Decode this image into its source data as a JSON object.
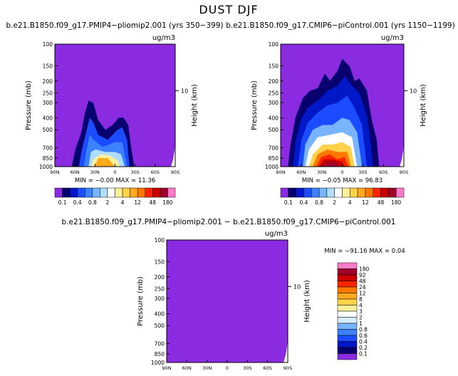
{
  "title": "DUST DJF",
  "colors": {
    "background": "#8a2be2",
    "palette": [
      "#8a2be2",
      "#08006e",
      "#0018c8",
      "#1c4cff",
      "#3c82ff",
      "#78b4ff",
      "#b0dcff",
      "#ffffff",
      "#fff09c",
      "#ffd24a",
      "#ffa91c",
      "#ff7800",
      "#ff2400",
      "#c80000",
      "#a0002a",
      "#ff7ac8"
    ]
  },
  "chart_data": [
    {
      "type": "contour",
      "id": "top-left",
      "title": "b.e21.B1850.f09_g17.PMIP4−pliomip2.001  (yrs 350−399)",
      "units": "ug/m3",
      "ylabel": "Pressure (mb)",
      "ylabel_right": "Height (km)",
      "x_ticks": [
        "90N",
        "60N",
        "30N",
        "0",
        "30S",
        "60S",
        "90S"
      ],
      "y_ticks": [
        "100",
        "150",
        "200",
        "250",
        "300",
        "400",
        "500",
        "700",
        "850",
        "1000"
      ],
      "right_ticks": [
        "10"
      ],
      "ylim": [
        1000,
        100
      ],
      "stats": "MIN =   −0.00   MAX =   11.36",
      "colorbar": {
        "orientation": "horizontal",
        "labels": [
          "0.1",
          "0.4",
          "0.8",
          "2",
          "4",
          "12",
          "48",
          "180"
        ]
      },
      "max_level_index": 12
    },
    {
      "type": "contour",
      "id": "top-right",
      "title": "b.e21.B1850.f09_g17.CMIP6−piControl.001  (yrs 1150−1199)",
      "units": "ug/m3",
      "ylabel": "Pressure (mb)",
      "ylabel_right": "Height (km)",
      "x_ticks": [
        "90N",
        "60N",
        "30N",
        "0",
        "30S",
        "60S",
        "90S"
      ],
      "y_ticks": [
        "100",
        "150",
        "200",
        "250",
        "300",
        "400",
        "500",
        "700",
        "850",
        "1000"
      ],
      "right_ticks": [
        "10"
      ],
      "ylim": [
        1000,
        100
      ],
      "stats": "MIN =   −0.05   MAX =   96.83",
      "colorbar": {
        "orientation": "horizontal",
        "labels": [
          "0.1",
          "0.4",
          "0.8",
          "2",
          "4",
          "12",
          "48",
          "180"
        ]
      },
      "max_level_index": 14
    },
    {
      "type": "contour",
      "id": "bottom",
      "title": "b.e21.B1850.f09_g17.PMIP4−pliomip2.001  −  b.e21.B1850.f09_g17.CMIP6−piControl.001",
      "units": "ug/m3",
      "ylabel": "Pressure (mb)",
      "ylabel_right": "Height (km)",
      "x_ticks": [
        "90N",
        "60N",
        "30N",
        "0",
        "30S",
        "60S",
        "90S"
      ],
      "y_ticks": [
        "100",
        "150",
        "200",
        "250",
        "300",
        "400",
        "500",
        "700",
        "850",
        "1000"
      ],
      "right_ticks": [
        "10"
      ],
      "ylim": [
        1000,
        100
      ],
      "stats": "MIN = −91.16   MAX =     0.04",
      "colorbar": {
        "orientation": "vertical",
        "labels": [
          "180",
          "92",
          "48",
          "24",
          "12",
          "8",
          "4",
          "3",
          "2",
          "1",
          "0.8",
          "0.6",
          "0.4",
          "0.2",
          "0.1"
        ]
      }
    }
  ]
}
